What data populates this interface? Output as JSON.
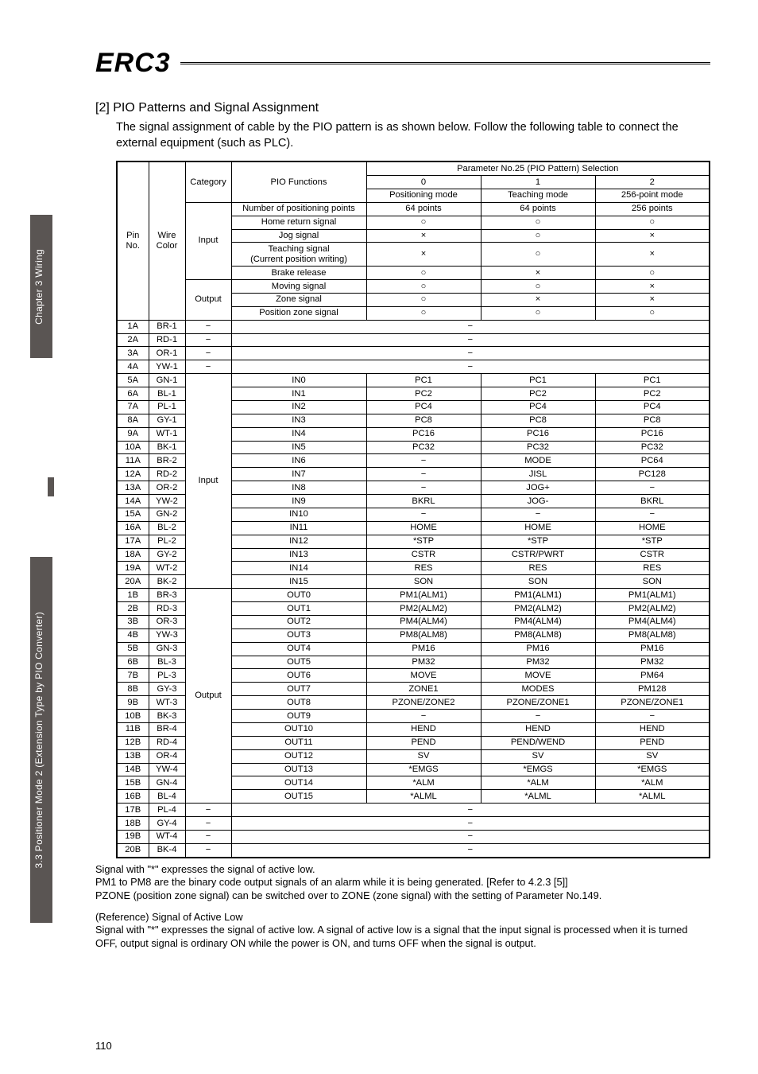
{
  "logo_text": "ERC3",
  "heading": "[2]  PIO Patterns and Signal Assignment",
  "lead_text": "The signal assignment of cable by the PIO pattern is as shown below. Follow the following table to connect the external equipment (such as PLC).",
  "side_tab_upper": "Chapter 3 Wiring",
  "side_tab_lower": "3.3 Positioner Mode 2 (Extension Type by PIO Converter)",
  "page_number": "110",
  "table": {
    "header": {
      "pin_no": "Pin No.",
      "wire_color": "Wire\nColor",
      "category": "Category",
      "pio_functions": "PIO Functions",
      "param_title": "Parameter No.25 (PIO Pattern) Selection",
      "mode_cols": [
        "0",
        "1",
        "2"
      ],
      "mode_names": [
        "Positioning mode",
        "Teaching mode",
        "256-point mode"
      ]
    },
    "top_block": {
      "category_input": "Input",
      "category_output": "Output",
      "rows_input": [
        {
          "func": "Number of positioning points",
          "v": [
            "64 points",
            "64 points",
            "256 points"
          ]
        },
        {
          "func": "Home return signal",
          "v": [
            "○",
            "○",
            "○"
          ]
        },
        {
          "func": "Jog signal",
          "v": [
            "×",
            "○",
            "×"
          ]
        },
        {
          "func": "Teaching signal\n(Current position writing)",
          "v": [
            "×",
            "○",
            "×"
          ]
        },
        {
          "func": "Brake release",
          "v": [
            "○",
            "×",
            "○"
          ]
        }
      ],
      "rows_output": [
        {
          "func": "Moving signal",
          "v": [
            "○",
            "○",
            "×"
          ]
        },
        {
          "func": "Zone signal",
          "v": [
            "○",
            "×",
            "×"
          ]
        },
        {
          "func": "Position zone signal",
          "v": [
            "○",
            "○",
            "○"
          ]
        }
      ]
    },
    "pin_rows": [
      {
        "pin": "1A",
        "wire": "BR-1",
        "cat": "−",
        "func": "",
        "v": [
          "",
          "−",
          ""
        ],
        "span": true
      },
      {
        "pin": "2A",
        "wire": "RD-1",
        "cat": "−",
        "func": "",
        "v": [
          "",
          "−",
          ""
        ],
        "span": true
      },
      {
        "pin": "3A",
        "wire": "OR-1",
        "cat": "−",
        "func": "",
        "v": [
          "",
          "−",
          ""
        ],
        "span": true
      },
      {
        "pin": "4A",
        "wire": "YW-1",
        "cat": "−",
        "func": "",
        "v": [
          "",
          "−",
          ""
        ],
        "span": true
      },
      {
        "pin": "5A",
        "wire": "GN-1",
        "cat_group": "Input",
        "func": "IN0",
        "v": [
          "PC1",
          "PC1",
          "PC1"
        ]
      },
      {
        "pin": "6A",
        "wire": "BL-1",
        "func": "IN1",
        "v": [
          "PC2",
          "PC2",
          "PC2"
        ]
      },
      {
        "pin": "7A",
        "wire": "PL-1",
        "func": "IN2",
        "v": [
          "PC4",
          "PC4",
          "PC4"
        ]
      },
      {
        "pin": "8A",
        "wire": "GY-1",
        "func": "IN3",
        "v": [
          "PC8",
          "PC8",
          "PC8"
        ]
      },
      {
        "pin": "9A",
        "wire": "WT-1",
        "func": "IN4",
        "v": [
          "PC16",
          "PC16",
          "PC16"
        ]
      },
      {
        "pin": "10A",
        "wire": "BK-1",
        "func": "IN5",
        "v": [
          "PC32",
          "PC32",
          "PC32"
        ]
      },
      {
        "pin": "11A",
        "wire": "BR-2",
        "func": "IN6",
        "v": [
          "−",
          "MODE",
          "PC64"
        ]
      },
      {
        "pin": "12A",
        "wire": "RD-2",
        "func": "IN7",
        "v": [
          "−",
          "JISL",
          "PC128"
        ]
      },
      {
        "pin": "13A",
        "wire": "OR-2",
        "func": "IN8",
        "v": [
          "−",
          "JOG+",
          "−"
        ]
      },
      {
        "pin": "14A",
        "wire": "YW-2",
        "func": "IN9",
        "v": [
          "BKRL",
          "JOG-",
          "BKRL"
        ]
      },
      {
        "pin": "15A",
        "wire": "GN-2",
        "func": "IN10",
        "v": [
          "−",
          "−",
          "−"
        ]
      },
      {
        "pin": "16A",
        "wire": "BL-2",
        "func": "IN11",
        "v": [
          "HOME",
          "HOME",
          "HOME"
        ]
      },
      {
        "pin": "17A",
        "wire": "PL-2",
        "func": "IN12",
        "v": [
          "*STP",
          "*STP",
          "*STP"
        ]
      },
      {
        "pin": "18A",
        "wire": "GY-2",
        "func": "IN13",
        "v": [
          "CSTR",
          "CSTR/PWRT",
          "CSTR"
        ]
      },
      {
        "pin": "19A",
        "wire": "WT-2",
        "func": "IN14",
        "v": [
          "RES",
          "RES",
          "RES"
        ]
      },
      {
        "pin": "20A",
        "wire": "BK-2",
        "func": "IN15",
        "v": [
          "SON",
          "SON",
          "SON"
        ]
      },
      {
        "pin": "1B",
        "wire": "BR-3",
        "cat_group": "Output",
        "func": "OUT0",
        "v": [
          "PM1(ALM1)",
          "PM1(ALM1)",
          "PM1(ALM1)"
        ]
      },
      {
        "pin": "2B",
        "wire": "RD-3",
        "func": "OUT1",
        "v": [
          "PM2(ALM2)",
          "PM2(ALM2)",
          "PM2(ALM2)"
        ]
      },
      {
        "pin": "3B",
        "wire": "OR-3",
        "func": "OUT2",
        "v": [
          "PM4(ALM4)",
          "PM4(ALM4)",
          "PM4(ALM4)"
        ]
      },
      {
        "pin": "4B",
        "wire": "YW-3",
        "func": "OUT3",
        "v": [
          "PM8(ALM8)",
          "PM8(ALM8)",
          "PM8(ALM8)"
        ]
      },
      {
        "pin": "5B",
        "wire": "GN-3",
        "func": "OUT4",
        "v": [
          "PM16",
          "PM16",
          "PM16"
        ]
      },
      {
        "pin": "6B",
        "wire": "BL-3",
        "func": "OUT5",
        "v": [
          "PM32",
          "PM32",
          "PM32"
        ]
      },
      {
        "pin": "7B",
        "wire": "PL-3",
        "func": "OUT6",
        "v": [
          "MOVE",
          "MOVE",
          "PM64"
        ]
      },
      {
        "pin": "8B",
        "wire": "GY-3",
        "func": "OUT7",
        "v": [
          "ZONE1",
          "MODES",
          "PM128"
        ]
      },
      {
        "pin": "9B",
        "wire": "WT-3",
        "func": "OUT8",
        "v": [
          "PZONE/ZONE2",
          "PZONE/ZONE1",
          "PZONE/ZONE1"
        ]
      },
      {
        "pin": "10B",
        "wire": "BK-3",
        "func": "OUT9",
        "v": [
          "−",
          "−",
          "−"
        ]
      },
      {
        "pin": "11B",
        "wire": "BR-4",
        "func": "OUT10",
        "v": [
          "HEND",
          "HEND",
          "HEND"
        ]
      },
      {
        "pin": "12B",
        "wire": "RD-4",
        "func": "OUT11",
        "v": [
          "PEND",
          "PEND/WEND",
          "PEND"
        ]
      },
      {
        "pin": "13B",
        "wire": "OR-4",
        "func": "OUT12",
        "v": [
          "SV",
          "SV",
          "SV"
        ]
      },
      {
        "pin": "14B",
        "wire": "YW-4",
        "func": "OUT13",
        "v": [
          "*EMGS",
          "*EMGS",
          "*EMGS"
        ]
      },
      {
        "pin": "15B",
        "wire": "GN-4",
        "func": "OUT14",
        "v": [
          "*ALM",
          "*ALM",
          "*ALM"
        ]
      },
      {
        "pin": "16B",
        "wire": "BL-4",
        "func": "OUT15",
        "v": [
          "*ALML",
          "*ALML",
          "*ALML"
        ]
      },
      {
        "pin": "17B",
        "wire": "PL-4",
        "cat": "−",
        "func": "",
        "v": [
          "",
          "−",
          ""
        ],
        "span": true
      },
      {
        "pin": "18B",
        "wire": "GY-4",
        "cat": "−",
        "func": "",
        "v": [
          "",
          "−",
          ""
        ],
        "span": true
      },
      {
        "pin": "19B",
        "wire": "WT-4",
        "cat": "−",
        "func": "",
        "v": [
          "",
          "−",
          ""
        ],
        "span": true
      },
      {
        "pin": "20B",
        "wire": "BK-4",
        "cat": "−",
        "func": "",
        "v": [
          "",
          "−",
          ""
        ],
        "span": true
      }
    ],
    "input_group_span": 16,
    "output_group_span": 16
  },
  "notes": [
    "Signal with \"*\" expresses the signal of active low.",
    "PM1 to PM8 are the binary code output signals of an alarm while it is being generated. [Refer to 4.2.3 [5]]",
    "PZONE (position zone signal) can be switched over to ZONE (zone signal) with the setting of Parameter No.149.",
    "",
    "(Reference) Signal of Active Low",
    "Signal with \"*\" expresses the signal of active low. A signal of active low is a signal that the input signal is processed when it is turned OFF, output signal is ordinary ON while the power is ON, and turns OFF when the signal is output."
  ]
}
